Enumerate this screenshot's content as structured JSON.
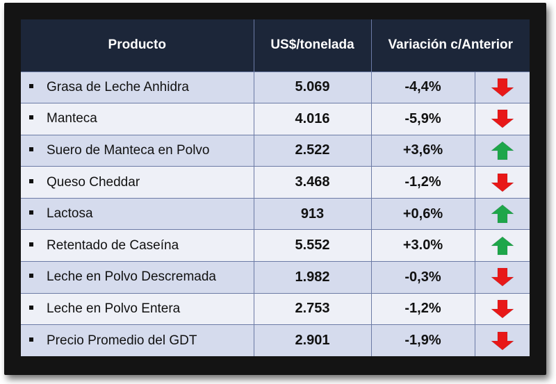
{
  "table": {
    "headers": {
      "product": "Producto",
      "price": "US$/tonelada",
      "change": "Variación c/Anterior"
    },
    "rows": [
      {
        "product": "Grasa de Leche Anhidra",
        "price": "5.069",
        "change": "-4,4%",
        "trend": "down"
      },
      {
        "product": "Manteca",
        "price": "4.016",
        "change": "-5,9%",
        "trend": "down"
      },
      {
        "product": "Suero de Manteca en Polvo",
        "price": "2.522",
        "change": "+3,6%",
        "trend": "up"
      },
      {
        "product": "Queso Cheddar",
        "price": "3.468",
        "change": "-1,2%",
        "trend": "down"
      },
      {
        "product": "Lactosa",
        "price": "913",
        "change": "+0,6%",
        "trend": "up"
      },
      {
        "product": "Retentado de Caseína",
        "price": "5.552",
        "change": "+3.0%",
        "trend": "up"
      },
      {
        "product": "Leche en Polvo Descremada",
        "price": "1.982",
        "change": "-0,3%",
        "trend": "down"
      },
      {
        "product": "Leche en Polvo Entera",
        "price": "2.753",
        "change": "-1,2%",
        "trend": "down"
      },
      {
        "product": "Precio Promedio del GDT",
        "price": "2.901",
        "change": "-1,9%",
        "trend": "down"
      }
    ]
  },
  "colors": {
    "header_bg": "#1c2639",
    "down_arrow": "#e81818",
    "up_arrow": "#1ea64a"
  },
  "icons": {
    "down": "arrow-down-icon",
    "up": "arrow-up-icon"
  }
}
